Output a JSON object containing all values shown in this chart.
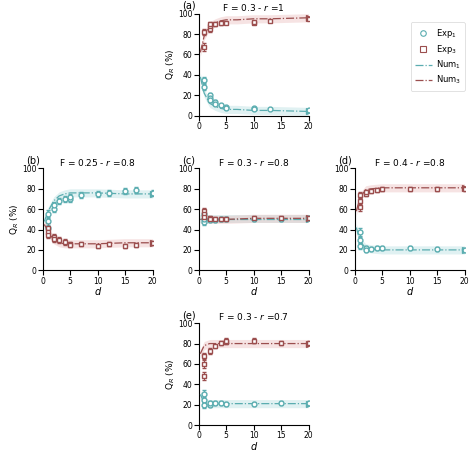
{
  "panels": [
    {
      "label": "(a)",
      "title": "F = 0.3 - r =1",
      "exp1_x": [
        1,
        1,
        2,
        2,
        2,
        3,
        3,
        4,
        5,
        5,
        10,
        10,
        13,
        20
      ],
      "exp1_y": [
        35,
        28,
        20,
        17,
        15,
        13,
        11,
        10,
        8,
        7,
        7,
        6,
        6,
        5
      ],
      "exp1_yerr": [
        3,
        3,
        2,
        2,
        2,
        2,
        1,
        1,
        1,
        1,
        1,
        1,
        1,
        1
      ],
      "exp3_x": [
        1,
        1,
        2,
        2,
        2,
        3,
        4,
        5,
        10,
        10,
        13,
        20
      ],
      "exp3_y": [
        67,
        82,
        85,
        88,
        90,
        90,
        91,
        91,
        91,
        92,
        93,
        95
      ],
      "exp3_yerr": [
        4,
        3,
        3,
        2,
        2,
        2,
        2,
        1,
        1,
        1,
        1,
        1
      ],
      "num1_x": [
        0.3,
        1,
        2,
        3,
        4,
        5,
        7,
        10,
        13,
        20
      ],
      "num1_y": [
        38,
        22,
        12,
        9,
        7,
        6,
        6,
        5,
        5,
        4
      ],
      "num3_x": [
        0.3,
        1,
        2,
        3,
        4,
        5,
        7,
        10,
        13,
        20
      ],
      "num3_y": [
        62,
        78,
        88,
        91,
        93,
        94,
        94,
        95,
        95,
        96
      ],
      "ylim": [
        0,
        100
      ],
      "show_xlabel": false,
      "show_ylabel": true
    },
    {
      "label": "(b)",
      "title": "F = 0.25 - r =0.8",
      "exp1_x": [
        1,
        1,
        1,
        2,
        2,
        3,
        4,
        5,
        5,
        7,
        10,
        12,
        15,
        17,
        20
      ],
      "exp1_y": [
        42,
        48,
        55,
        60,
        64,
        68,
        70,
        70,
        72,
        74,
        75,
        76,
        78,
        79,
        76
      ],
      "exp1_yerr": [
        4,
        4,
        4,
        3,
        3,
        3,
        3,
        3,
        3,
        3,
        3,
        3,
        3,
        3,
        3
      ],
      "exp3_x": [
        1,
        1,
        1,
        2,
        2,
        3,
        4,
        5,
        5,
        7,
        10,
        12,
        15,
        17,
        20
      ],
      "exp3_y": [
        42,
        38,
        35,
        33,
        31,
        30,
        28,
        26,
        25,
        26,
        24,
        26,
        24,
        25,
        27
      ],
      "exp3_yerr": [
        4,
        4,
        3,
        3,
        3,
        3,
        3,
        2,
        2,
        2,
        2,
        2,
        2,
        2,
        2
      ],
      "num1_x": [
        0.3,
        1,
        2,
        3,
        4,
        5,
        7,
        10,
        15,
        20
      ],
      "num1_y": [
        48,
        58,
        68,
        73,
        75,
        76,
        76,
        76,
        75,
        75
      ],
      "num3_x": [
        0.3,
        1,
        2,
        3,
        4,
        5,
        7,
        10,
        15,
        20
      ],
      "num3_y": [
        45,
        38,
        30,
        27,
        26,
        26,
        26,
        26,
        27,
        27
      ],
      "ylim": [
        0,
        100
      ],
      "show_xlabel": true,
      "show_ylabel": true
    },
    {
      "label": "(c)",
      "title": "F = 0.3 - r =0.8",
      "exp1_x": [
        1,
        1,
        1,
        2,
        2,
        3,
        4,
        5,
        10,
        15,
        20
      ],
      "exp1_y": [
        47,
        50,
        55,
        50,
        49,
        49,
        50,
        50,
        50,
        50,
        51
      ],
      "exp1_yerr": [
        3,
        3,
        3,
        2,
        2,
        2,
        2,
        2,
        2,
        2,
        2
      ],
      "exp3_x": [
        1,
        1,
        1,
        2,
        2,
        3,
        4,
        5,
        10,
        15,
        20
      ],
      "exp3_y": [
        58,
        55,
        52,
        51,
        50,
        50,
        50,
        50,
        51,
        51,
        51
      ],
      "exp3_yerr": [
        3,
        3,
        3,
        2,
        2,
        2,
        2,
        2,
        2,
        2,
        2
      ],
      "num1_x": [
        0.3,
        1,
        2,
        3,
        5,
        10,
        15,
        20
      ],
      "num1_y": [
        50,
        50,
        50,
        50,
        50,
        50,
        50,
        50
      ],
      "num3_x": [
        0.3,
        1,
        2,
        3,
        5,
        10,
        15,
        20
      ],
      "num3_y": [
        50,
        50,
        50,
        50,
        50,
        51,
        51,
        51
      ],
      "ylim": [
        0,
        100
      ],
      "show_xlabel": true,
      "show_ylabel": false
    },
    {
      "label": "(d)",
      "title": "F = 0.4 - r =0.8",
      "exp1_x": [
        1,
        1,
        1,
        2,
        2,
        3,
        4,
        5,
        10,
        15,
        20
      ],
      "exp1_y": [
        38,
        30,
        24,
        22,
        20,
        21,
        22,
        22,
        22,
        21,
        20
      ],
      "exp1_yerr": [
        4,
        3,
        3,
        2,
        2,
        2,
        2,
        2,
        2,
        2,
        2
      ],
      "exp3_x": [
        1,
        1,
        1,
        2,
        2,
        3,
        4,
        5,
        10,
        15,
        20
      ],
      "exp3_y": [
        62,
        68,
        74,
        75,
        77,
        78,
        79,
        80,
        80,
        80,
        80
      ],
      "exp3_yerr": [
        4,
        3,
        3,
        2,
        2,
        2,
        2,
        2,
        2,
        2,
        2
      ],
      "num1_x": [
        0.3,
        1,
        2,
        3,
        5,
        10,
        15,
        20
      ],
      "num1_y": [
        42,
        28,
        22,
        21,
        20,
        20,
        20,
        20
      ],
      "num3_x": [
        0.3,
        1,
        2,
        3,
        5,
        10,
        15,
        20
      ],
      "num3_y": [
        58,
        72,
        79,
        80,
        81,
        81,
        81,
        81
      ],
      "ylim": [
        0,
        100
      ],
      "show_xlabel": true,
      "show_ylabel": false
    },
    {
      "label": "(e)",
      "title": "F = 0.3 - r =0.7",
      "exp1_x": [
        1,
        1,
        1,
        2,
        2,
        3,
        4,
        5,
        10,
        15,
        20
      ],
      "exp1_y": [
        30,
        25,
        20,
        20,
        22,
        22,
        22,
        21,
        21,
        22,
        22
      ],
      "exp1_yerr": [
        4,
        3,
        3,
        2,
        2,
        2,
        2,
        2,
        2,
        2,
        2
      ],
      "exp3_x": [
        1,
        1,
        1,
        2,
        3,
        4,
        5,
        5,
        10,
        15,
        20
      ],
      "exp3_y": [
        48,
        60,
        68,
        73,
        78,
        81,
        82,
        83,
        83,
        81,
        81
      ],
      "exp3_yerr": [
        4,
        4,
        3,
        3,
        2,
        2,
        2,
        2,
        2,
        2,
        2
      ],
      "num1_x": [
        0.3,
        1,
        2,
        3,
        5,
        10,
        15,
        20
      ],
      "num1_y": [
        30,
        22,
        21,
        21,
        21,
        21,
        21,
        21
      ],
      "num3_x": [
        0.3,
        1,
        2,
        3,
        5,
        10,
        15,
        20
      ],
      "num3_y": [
        70,
        78,
        80,
        80,
        80,
        80,
        80,
        80
      ],
      "ylim": [
        0,
        100
      ],
      "show_xlabel": true,
      "show_ylabel": true
    }
  ],
  "color1": "#5badb0",
  "color3": "#9b4e4e",
  "fill1": "#a8d8da",
  "fill3": "#e8b0b0",
  "legend_labels": [
    "Exp$_1$",
    "Exp$_3$",
    "Num$_1$",
    "Num$_3$"
  ],
  "xlabel": "d",
  "ylabel": "Q$_R$ (%)"
}
